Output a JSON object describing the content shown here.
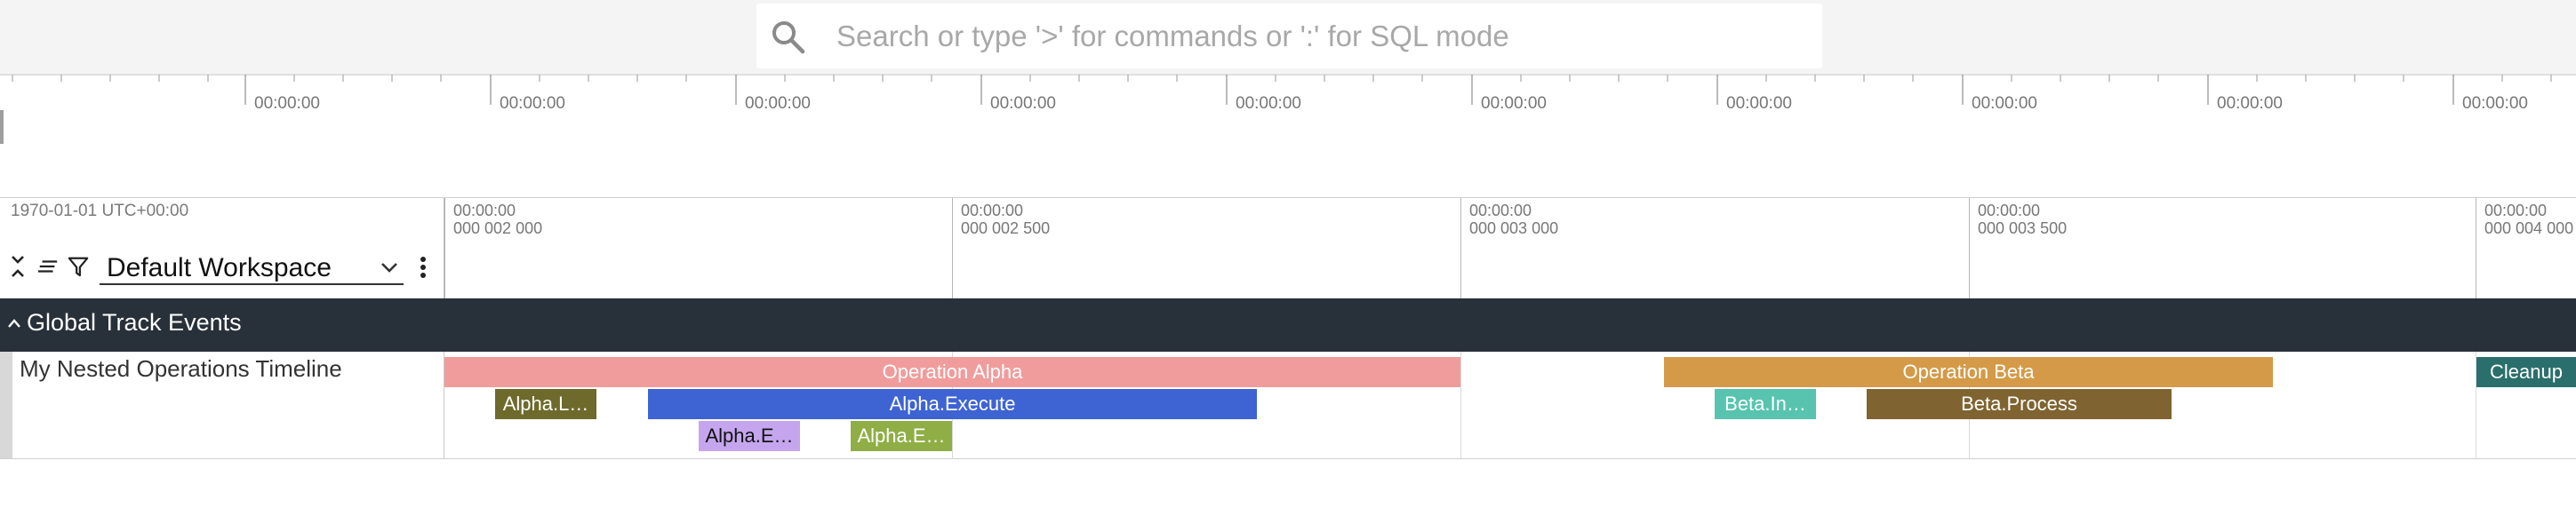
{
  "omnibox": {
    "placeholder": "Search or type '>' for commands or ':' for SQL mode"
  },
  "overview": {
    "tick_labels": [
      "00:00:00",
      "00:00:00",
      "00:00:00",
      "00:00:00",
      "00:00:00",
      "00:00:00",
      "00:00:00",
      "00:00:00",
      "00:00:00",
      "00:00:00"
    ]
  },
  "header": {
    "date_label": "1970-01-01 UTC+00:00",
    "workspace_name": "Default Workspace",
    "timestamps": [
      {
        "time": "00:00:00",
        "sub": "000 002 000"
      },
      {
        "time": "00:00:00",
        "sub": "000 002 500"
      },
      {
        "time": "00:00:00",
        "sub": "000 003 000"
      },
      {
        "time": "00:00:00",
        "sub": "000 003 500"
      },
      {
        "time": "00:00:00",
        "sub": "000 004 000"
      }
    ]
  },
  "section": {
    "title": "Global Track Events"
  },
  "track": {
    "title": "My Nested Operations Timeline",
    "slices": [
      {
        "label": "Operation Alpha",
        "color": "#f19c9c",
        "text_color": "#ffffff"
      },
      {
        "label": "Alpha.L…",
        "color": "#6e6a2c",
        "text_color": "#ffffff"
      },
      {
        "label": "Alpha.Execute",
        "color": "#3e63d3",
        "text_color": "#ffffff"
      },
      {
        "label": "Alpha.E…",
        "color": "#c5a6ee",
        "text_color": "#111111"
      },
      {
        "label": "Alpha.E…",
        "color": "#8fae45",
        "text_color": "#ffffff"
      },
      {
        "label": "Operation Beta",
        "color": "#d49a48",
        "text_color": "#ffffff"
      },
      {
        "label": "Beta.In…",
        "color": "#58c4b0",
        "text_color": "#ffffff"
      },
      {
        "label": "Beta.Process",
        "color": "#7f6431",
        "text_color": "#ffffff"
      },
      {
        "label": "Cleanup",
        "color": "#2b6f6c",
        "text_color": "#ffffff"
      }
    ]
  },
  "icons": {
    "search": "search-icon",
    "collapse_all": "collapse-all-icon",
    "list": "list-icon",
    "filter": "filter-icon",
    "dropdown": "chevron-down-icon",
    "more": "more-vert-icon",
    "section_toggle": "chevron-up-icon"
  }
}
